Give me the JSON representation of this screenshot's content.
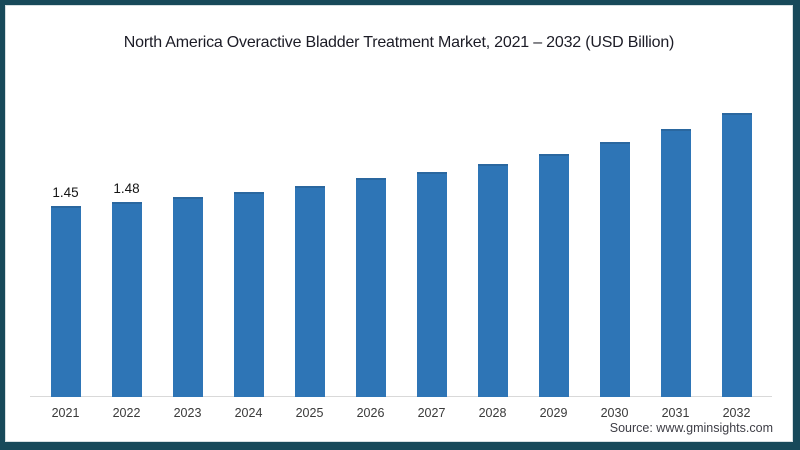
{
  "frame": {
    "border_color": "#17495a",
    "background": "#ffffff"
  },
  "chart_data": {
    "type": "bar",
    "title": "North America Overactive Bladder Treatment Market, 2021 – 2032 (USD Billion)",
    "categories": [
      "2021",
      "2022",
      "2023",
      "2024",
      "2025",
      "2026",
      "2027",
      "2028",
      "2029",
      "2030",
      "2031",
      "2032"
    ],
    "values": [
      1.45,
      1.48,
      1.52,
      1.56,
      1.6,
      1.66,
      1.71,
      1.77,
      1.85,
      1.94,
      2.04,
      2.16
    ],
    "data_labels": [
      "1.45",
      "1.48",
      "",
      "",
      "",
      "",
      "",
      "",
      "",
      "",
      "",
      ""
    ],
    "bar_color": "#2e75b6",
    "bar_top_edge_color": "#2a679f",
    "axis_line_color": "#d9d9d9",
    "xlabel": "",
    "ylabel": "",
    "ylim": [
      0,
      2.3
    ],
    "grid": false,
    "legend_position": "none"
  },
  "source": {
    "text": "Source: www.gminsights.com"
  }
}
